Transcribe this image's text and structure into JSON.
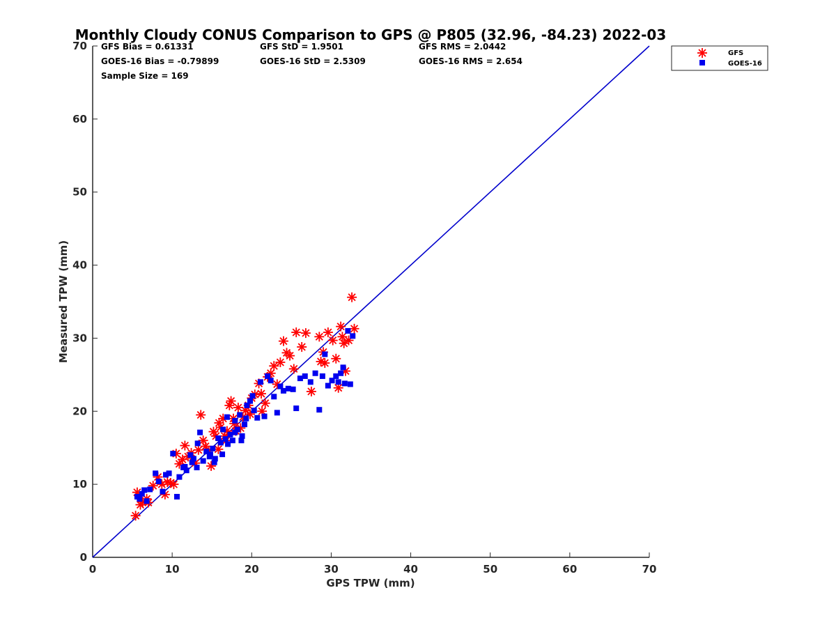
{
  "chart_data": {
    "type": "scatter",
    "title": "Monthly Cloudy CONUS Comparison to GPS @ P805 (32.96, -84.23) 2022-03",
    "xlabel": "GPS TPW (mm)",
    "ylabel": "Measured TPW (mm)",
    "xlim": [
      0,
      70
    ],
    "ylim": [
      0,
      70
    ],
    "x_ticks": [
      "0",
      "10",
      "20",
      "30",
      "40",
      "50",
      "60",
      "70"
    ],
    "y_ticks": [
      "0",
      "10",
      "20",
      "30",
      "40",
      "50",
      "60",
      "70"
    ],
    "grid": false,
    "legend_position": "top-right, outside plot",
    "stats": [
      [
        "GFS Bias = 0.61331",
        "GFS StD = 1.9501",
        "GFS RMS = 2.0442"
      ],
      [
        "GOES-16 Bias = -0.79899",
        "GOES-16 StD = 2.5309",
        "GOES-16 RMS = 2.654"
      ],
      [
        "Sample Size = 169",
        "",
        ""
      ]
    ],
    "reference_line": {
      "x": [
        0,
        70
      ],
      "y": [
        0,
        70
      ],
      "color": "#0000cc"
    },
    "series": [
      {
        "name": "GFS",
        "marker": "asterisk",
        "color": "#ff0000",
        "points": [
          [
            5.4,
            5.7
          ],
          [
            5.6,
            8.9
          ],
          [
            6.0,
            7.2
          ],
          [
            6.3,
            7.6
          ],
          [
            6.8,
            8.0
          ],
          [
            7.0,
            7.5
          ],
          [
            7.6,
            9.8
          ],
          [
            8.2,
            11.0
          ],
          [
            8.7,
            10.0
          ],
          [
            9.1,
            8.6
          ],
          [
            9.4,
            10.3
          ],
          [
            9.8,
            10.2
          ],
          [
            10.2,
            10.0
          ],
          [
            10.5,
            14.2
          ],
          [
            10.9,
            12.8
          ],
          [
            11.3,
            13.4
          ],
          [
            11.6,
            15.3
          ],
          [
            12.0,
            13.8
          ],
          [
            12.4,
            14.3
          ],
          [
            12.9,
            12.9
          ],
          [
            13.3,
            14.7
          ],
          [
            13.6,
            19.5
          ],
          [
            13.9,
            16.0
          ],
          [
            14.2,
            15.2
          ],
          [
            14.6,
            14.6
          ],
          [
            14.9,
            12.5
          ],
          [
            15.2,
            17.2
          ],
          [
            15.5,
            16.6
          ],
          [
            15.9,
            18.4
          ],
          [
            16.1,
            17.8
          ],
          [
            16.4,
            19.0
          ],
          [
            16.6,
            16.6
          ],
          [
            16.9,
            17.3
          ],
          [
            17.2,
            20.8
          ],
          [
            17.4,
            21.4
          ],
          [
            17.7,
            19.0
          ],
          [
            18.0,
            17.3
          ],
          [
            18.3,
            20.5
          ],
          [
            18.6,
            17.7
          ],
          [
            18.9,
            19.2
          ],
          [
            19.2,
            20.1
          ],
          [
            19.6,
            20.8
          ],
          [
            20.0,
            21.8
          ],
          [
            20.4,
            22.3
          ],
          [
            20.9,
            23.8
          ],
          [
            21.3,
            20.0
          ],
          [
            21.7,
            21.1
          ],
          [
            22.0,
            24.7
          ],
          [
            22.4,
            25.2
          ],
          [
            22.8,
            26.2
          ],
          [
            23.2,
            23.7
          ],
          [
            23.6,
            26.7
          ],
          [
            24.0,
            29.6
          ],
          [
            24.4,
            28.0
          ],
          [
            24.8,
            27.6
          ],
          [
            25.3,
            25.8
          ],
          [
            25.6,
            30.8
          ],
          [
            26.3,
            28.8
          ],
          [
            26.8,
            30.7
          ],
          [
            27.5,
            22.7
          ],
          [
            28.5,
            30.2
          ],
          [
            28.7,
            26.8
          ],
          [
            29.0,
            28.1
          ],
          [
            29.2,
            26.6
          ],
          [
            29.6,
            30.8
          ],
          [
            30.2,
            29.7
          ],
          [
            30.6,
            27.2
          ],
          [
            30.9,
            23.2
          ],
          [
            31.2,
            31.6
          ],
          [
            31.4,
            30.2
          ],
          [
            31.6,
            29.3
          ],
          [
            31.8,
            25.5
          ],
          [
            32.2,
            29.7
          ],
          [
            32.6,
            35.6
          ],
          [
            32.9,
            31.3
          ],
          [
            17.8,
            18.3
          ],
          [
            16.8,
            16.0
          ],
          [
            15.8,
            14.8
          ],
          [
            19.8,
            19.6
          ],
          [
            21.2,
            22.4
          ]
        ]
      },
      {
        "name": "GOES-16",
        "marker": "square",
        "color": "#0000ee",
        "points": [
          [
            5.6,
            8.3
          ],
          [
            5.9,
            8.0
          ],
          [
            6.2,
            8.7
          ],
          [
            6.5,
            9.2
          ],
          [
            6.8,
            7.7
          ],
          [
            7.2,
            9.3
          ],
          [
            7.9,
            11.5
          ],
          [
            8.3,
            10.4
          ],
          [
            8.8,
            9.0
          ],
          [
            9.2,
            11.3
          ],
          [
            9.6,
            11.5
          ],
          [
            10.1,
            14.2
          ],
          [
            10.6,
            8.3
          ],
          [
            10.9,
            11.0
          ],
          [
            11.4,
            12.3
          ],
          [
            11.8,
            11.9
          ],
          [
            12.3,
            14.0
          ],
          [
            12.7,
            13.5
          ],
          [
            13.1,
            12.3
          ],
          [
            13.5,
            17.1
          ],
          [
            13.9,
            13.2
          ],
          [
            14.3,
            14.5
          ],
          [
            14.7,
            13.8
          ],
          [
            15.1,
            14.9
          ],
          [
            15.4,
            13.5
          ],
          [
            15.8,
            16.3
          ],
          [
            16.1,
            15.7
          ],
          [
            16.4,
            17.5
          ],
          [
            16.7,
            16.2
          ],
          [
            17.0,
            15.5
          ],
          [
            17.3,
            16.8
          ],
          [
            17.6,
            16.0
          ],
          [
            17.9,
            18.7
          ],
          [
            18.2,
            17.5
          ],
          [
            18.5,
            19.5
          ],
          [
            18.8,
            16.6
          ],
          [
            19.1,
            18.2
          ],
          [
            19.4,
            20.8
          ],
          [
            19.8,
            21.4
          ],
          [
            20.3,
            20.1
          ],
          [
            20.7,
            19.1
          ],
          [
            21.1,
            24.0
          ],
          [
            21.6,
            19.3
          ],
          [
            22.0,
            24.8
          ],
          [
            22.4,
            24.2
          ],
          [
            22.8,
            22.0
          ],
          [
            23.2,
            19.8
          ],
          [
            23.6,
            23.4
          ],
          [
            24.0,
            22.8
          ],
          [
            24.6,
            23.1
          ],
          [
            25.2,
            23.0
          ],
          [
            25.6,
            20.4
          ],
          [
            26.1,
            24.5
          ],
          [
            26.7,
            24.8
          ],
          [
            27.4,
            24.0
          ],
          [
            28.0,
            25.2
          ],
          [
            28.5,
            20.2
          ],
          [
            28.9,
            24.8
          ],
          [
            29.2,
            27.8
          ],
          [
            29.6,
            23.5
          ],
          [
            30.1,
            24.2
          ],
          [
            30.6,
            24.8
          ],
          [
            30.9,
            24.0
          ],
          [
            31.2,
            25.2
          ],
          [
            31.5,
            26.0
          ],
          [
            31.7,
            23.8
          ],
          [
            32.1,
            31.0
          ],
          [
            32.4,
            23.7
          ],
          [
            32.7,
            30.3
          ],
          [
            16.3,
            14.1
          ],
          [
            15.3,
            13.0
          ],
          [
            17.9,
            17.1
          ],
          [
            18.7,
            16.0
          ],
          [
            13.2,
            15.6
          ],
          [
            11.6,
            12.4
          ],
          [
            19.3,
            19.0
          ],
          [
            20.1,
            22.1
          ],
          [
            14.8,
            14.1
          ],
          [
            12.5,
            13.0
          ],
          [
            16.9,
            19.2
          ]
        ]
      }
    ]
  }
}
